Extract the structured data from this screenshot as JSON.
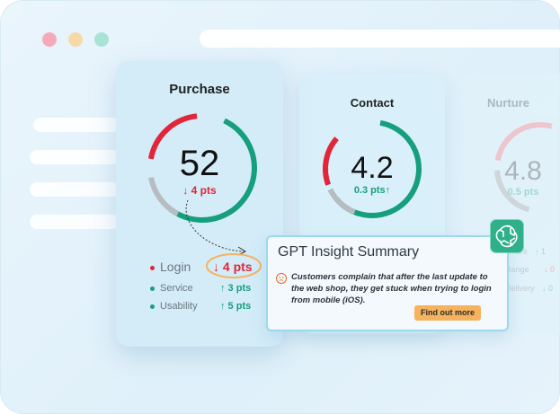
{
  "window": {
    "dots": [
      "red-dot",
      "yellow-dot",
      "green-dot"
    ]
  },
  "cards": {
    "purchase": {
      "title": "Purchase",
      "score": "52",
      "delta": "↓ 4 pts",
      "rows": [
        {
          "label": "Login",
          "delta": "↓ 4 pts",
          "direction": "down"
        },
        {
          "label": "Service",
          "delta": "↑ 3 pts",
          "direction": "up"
        },
        {
          "label": "Usability",
          "delta": "↑ 5 pts",
          "direction": "up"
        }
      ]
    },
    "contact": {
      "title": "Contact",
      "score": "4.2",
      "delta": "0.3 pts↑"
    },
    "nurture": {
      "title": "Nurture",
      "score": "4.8",
      "delta": "0.5 pts",
      "rows": [
        {
          "label": "yment",
          "delta": "↑ 1"
        },
        {
          "label": "Range",
          "delta": "↓ 0"
        },
        {
          "label": "Delivery",
          "delta": "↓ 0"
        }
      ]
    }
  },
  "insight": {
    "title": "GPT Insight Summary",
    "text": "Customers complain that after the last update to the web shop, they get stuck when trying to login from mobile (iOS).",
    "button": "Find out more"
  },
  "colors": {
    "red": "#e1263a",
    "green": "#169f7c",
    "accent_orange": "#f6b35d",
    "ring_gray": "#b6bcc0"
  }
}
